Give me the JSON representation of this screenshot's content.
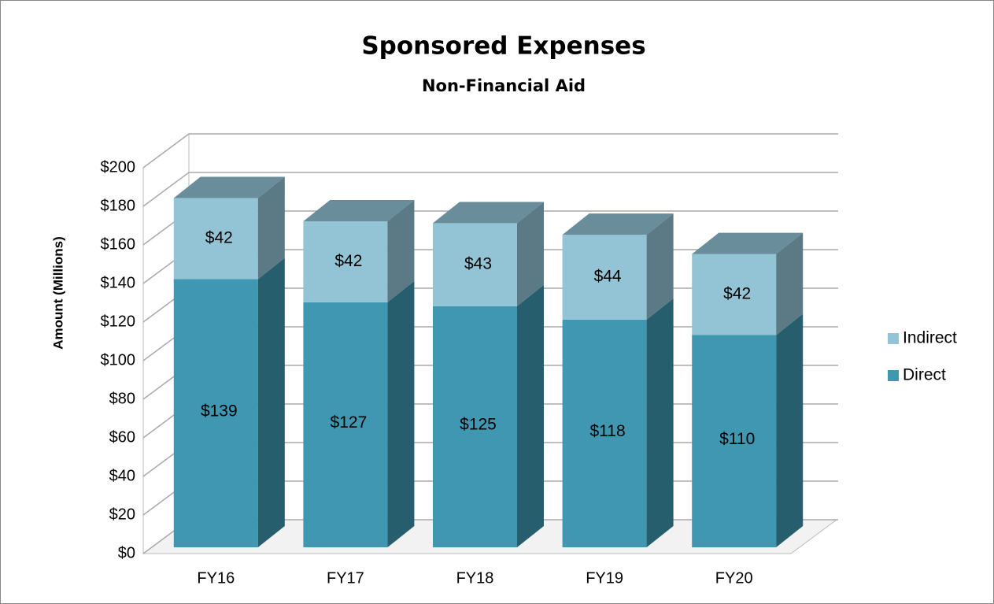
{
  "chart_data": {
    "type": "bar3d_stacked",
    "title": "Sponsored Expenses",
    "subtitle": "Non-Financial Aid",
    "y_label": "Amount (Millions)",
    "categories": [
      "FY16",
      "FY17",
      "FY18",
      "FY19",
      "FY20"
    ],
    "series": [
      {
        "name": "Direct",
        "color": "#3f97b1",
        "values": [
          139,
          127,
          125,
          118,
          110
        ],
        "value_labels": [
          "$139",
          "$127",
          "$125",
          "$118",
          "$110"
        ]
      },
      {
        "name": "Indirect",
        "color": "#92c4d6",
        "values": [
          42,
          42,
          43,
          44,
          42
        ],
        "value_labels": [
          "$42",
          "$42",
          "$43",
          "$44",
          "$42"
        ]
      }
    ],
    "ylim": [
      0,
      200
    ],
    "yticks": [
      {
        "value": 0,
        "label": "$0"
      },
      {
        "value": 20,
        "label": "$20"
      },
      {
        "value": 40,
        "label": "$40"
      },
      {
        "value": 60,
        "label": "$60"
      },
      {
        "value": 80,
        "label": "$80"
      },
      {
        "value": 100,
        "label": "$100"
      },
      {
        "value": 120,
        "label": "$120"
      },
      {
        "value": 140,
        "label": "$140"
      },
      {
        "value": 160,
        "label": "$160"
      },
      {
        "value": 180,
        "label": "$180"
      },
      {
        "value": 200,
        "label": "$200"
      }
    ],
    "grid": true,
    "legend": "right"
  }
}
